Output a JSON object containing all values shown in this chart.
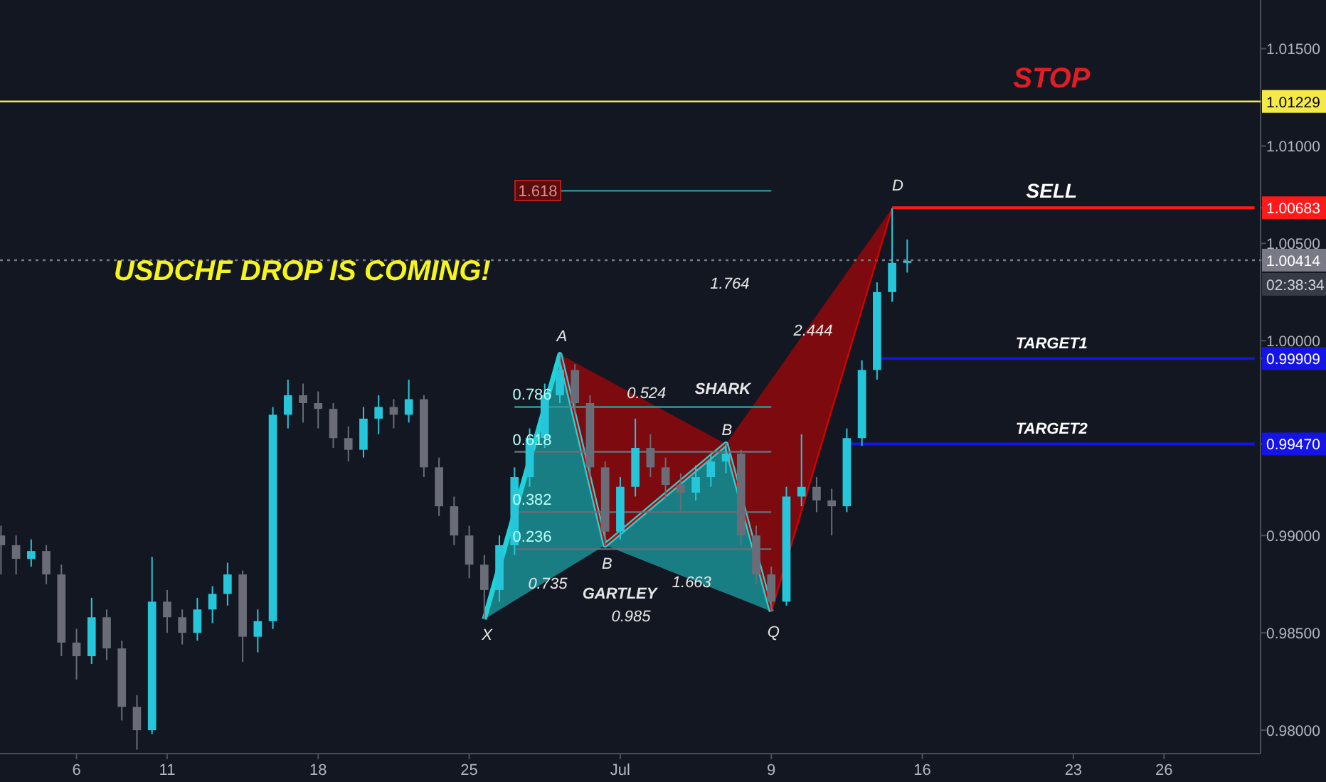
{
  "chart_data": {
    "type": "candlestick",
    "title": "USDCHF DROP IS COMING!",
    "categories": [
      null,
      null,
      null,
      null,
      null,
      "6",
      null,
      null,
      null,
      null,
      null,
      "11",
      null,
      null,
      null,
      null,
      null,
      null,
      null,
      null,
      null,
      "18",
      null,
      null,
      null,
      null,
      null,
      null,
      null,
      null,
      null,
      "25",
      null,
      null,
      null,
      null,
      null,
      null,
      null,
      null,
      null,
      "Jul",
      null,
      null,
      null,
      null,
      null,
      null,
      null,
      null,
      null,
      "9",
      null,
      null,
      null,
      null,
      null,
      null,
      null,
      null,
      null,
      "16",
      null,
      null,
      null,
      null,
      null,
      null,
      null,
      null,
      null,
      "23",
      null,
      null,
      null,
      null,
      null,
      "26",
      null,
      null,
      null,
      null,
      null,
      null
    ],
    "ohlc": [
      [
        0.99,
        0.9905,
        0.988,
        0.9895
      ],
      [
        0.9895,
        0.99,
        0.988,
        0.9888
      ],
      [
        0.9888,
        0.9898,
        0.9884,
        0.9892
      ],
      [
        0.9892,
        0.9895,
        0.9875,
        0.988
      ],
      [
        0.988,
        0.9885,
        0.9838,
        0.9845
      ],
      [
        0.9845,
        0.9852,
        0.9826,
        0.9838
      ],
      [
        0.9838,
        0.9868,
        0.9834,
        0.9858
      ],
      [
        0.9858,
        0.9862,
        0.9836,
        0.9842
      ],
      [
        0.9842,
        0.9846,
        0.9805,
        0.9812
      ],
      [
        0.9812,
        0.9818,
        0.979,
        0.98
      ],
      [
        0.98,
        0.9889,
        0.9798,
        0.9866
      ],
      [
        0.9866,
        0.9872,
        0.985,
        0.9858
      ],
      [
        0.9858,
        0.9862,
        0.9844,
        0.985
      ],
      [
        0.985,
        0.9868,
        0.9846,
        0.9862
      ],
      [
        0.9862,
        0.9874,
        0.9855,
        0.987
      ],
      [
        0.987,
        0.9886,
        0.9864,
        0.988
      ],
      [
        0.988,
        0.9882,
        0.9835,
        0.9848
      ],
      [
        0.9848,
        0.9862,
        0.984,
        0.9856
      ],
      [
        0.9856,
        0.9966,
        0.9852,
        0.9962
      ],
      [
        0.9962,
        0.998,
        0.9955,
        0.9972
      ],
      [
        0.9972,
        0.9978,
        0.9958,
        0.9968
      ],
      [
        0.9968,
        0.9974,
        0.9955,
        0.9965
      ],
      [
        0.9965,
        0.9968,
        0.9945,
        0.995
      ],
      [
        0.995,
        0.9956,
        0.9938,
        0.9944
      ],
      [
        0.9944,
        0.9966,
        0.994,
        0.996
      ],
      [
        0.996,
        0.9972,
        0.9952,
        0.9966
      ],
      [
        0.9966,
        0.997,
        0.9955,
        0.9962
      ],
      [
        0.9962,
        0.998,
        0.9958,
        0.997
      ],
      [
        0.997,
        0.9972,
        0.993,
        0.9935
      ],
      [
        0.9935,
        0.994,
        0.991,
        0.9915
      ],
      [
        0.9915,
        0.992,
        0.9895,
        0.99
      ],
      [
        0.99,
        0.9905,
        0.9878,
        0.9885
      ],
      [
        0.9885,
        0.989,
        0.9857,
        0.9872
      ],
      [
        0.9872,
        0.99,
        0.9866,
        0.9895
      ],
      [
        0.9895,
        0.9935,
        0.989,
        0.993
      ],
      [
        0.993,
        0.9955,
        0.9925,
        0.995
      ],
      [
        0.995,
        0.9978,
        0.9945,
        0.9972
      ],
      [
        0.9972,
        0.9993,
        0.9968,
        0.9985
      ],
      [
        0.9985,
        0.9988,
        0.9962,
        0.9968
      ],
      [
        0.9968,
        0.9972,
        0.993,
        0.9935
      ],
      [
        0.9935,
        0.9938,
        0.9895,
        0.9902
      ],
      [
        0.9902,
        0.993,
        0.9898,
        0.9925
      ],
      [
        0.9925,
        0.996,
        0.992,
        0.9945
      ],
      [
        0.9945,
        0.9952,
        0.993,
        0.9935
      ],
      [
        0.9935,
        0.994,
        0.9918,
        0.9926
      ],
      [
        0.9926,
        0.9932,
        0.9912,
        0.9922
      ],
      [
        0.9922,
        0.9936,
        0.9918,
        0.993
      ],
      [
        0.993,
        0.9942,
        0.9925,
        0.9938
      ],
      [
        0.9938,
        0.9947,
        0.9932,
        0.9942
      ],
      [
        0.9942,
        0.9944,
        0.9895,
        0.99
      ],
      [
        0.99,
        0.9905,
        0.9875,
        0.988
      ],
      [
        0.988,
        0.9884,
        0.9861,
        0.9866
      ],
      [
        0.9866,
        0.9925,
        0.9864,
        0.992
      ],
      [
        0.992,
        0.9952,
        0.9915,
        0.9925
      ],
      [
        0.9925,
        0.993,
        0.9912,
        0.9918
      ],
      [
        0.9918,
        0.9924,
        0.99,
        0.9915
      ],
      [
        0.9915,
        0.9955,
        0.9912,
        0.995
      ],
      [
        0.995,
        0.999,
        0.9946,
        0.9985
      ],
      [
        0.9985,
        1.003,
        0.998,
        1.0025
      ],
      [
        1.0025,
        1.0068,
        1.002,
        1.004
      ],
      [
        1.004,
        1.0052,
        1.0035,
        1.0041
      ],
      null,
      null,
      null,
      null,
      null,
      null,
      null,
      null,
      null,
      null,
      null,
      null,
      null,
      null,
      null,
      null,
      null,
      null,
      null,
      null,
      null,
      null,
      null
    ],
    "ylim": [
      0.9788,
      1.0175
    ],
    "yticks": [
      {
        "value": 0.98,
        "label": "0.98000"
      },
      {
        "value": 0.985,
        "label": "0.98500"
      },
      {
        "value": 0.99,
        "label": "0.99000"
      },
      {
        "value": 0.9947,
        "label": "0.99470"
      },
      {
        "value": 0.99909,
        "label": "0.99909"
      },
      {
        "value": 1.0,
        "label": "1.00000"
      },
      {
        "value": 1.00414,
        "label": "1.00414"
      },
      {
        "value": 1.005,
        "label": "1.00500"
      },
      {
        "value": 1.00683,
        "label": "1.00683"
      },
      {
        "value": 1.01,
        "label": "1.01000"
      },
      {
        "value": 1.01229,
        "label": "1.01229"
      },
      {
        "value": 1.015,
        "label": "1.01500"
      }
    ],
    "series": [
      {
        "type": "line",
        "color": "#1fd3d6",
        "values": [
          null,
          null,
          null,
          null,
          null,
          null,
          null,
          null,
          null,
          null,
          null,
          null,
          null,
          null,
          null,
          null,
          null,
          null,
          null,
          null,
          null,
          null,
          null,
          null,
          null,
          null,
          null,
          null,
          null,
          null,
          null,
          null,
          0.9857,
          null,
          null,
          null,
          null,
          0.9993,
          null,
          null,
          0.9895,
          null,
          null,
          null,
          null,
          null,
          null,
          null,
          0.9947,
          null,
          null,
          0.9861,
          null,
          null,
          null,
          null,
          null,
          null,
          null,
          null,
          null,
          null,
          null,
          null,
          null,
          null,
          null,
          null,
          null,
          null,
          null,
          null,
          null,
          null,
          null,
          null,
          null,
          null,
          null,
          null,
          null,
          null,
          null,
          null
        ]
      },
      {
        "type": "line",
        "color": "#d40000",
        "values": [
          null,
          null,
          null,
          null,
          null,
          null,
          null,
          null,
          null,
          null,
          null,
          null,
          null,
          null,
          null,
          null,
          null,
          null,
          null,
          null,
          null,
          null,
          null,
          null,
          null,
          null,
          null,
          null,
          null,
          null,
          null,
          null,
          null,
          null,
          null,
          null,
          null,
          0.9993,
          null,
          null,
          0.9895,
          null,
          null,
          null,
          null,
          null,
          null,
          null,
          0.9947,
          null,
          null,
          0.9861,
          null,
          null,
          null,
          null,
          null,
          null,
          null,
          1.0068,
          null,
          null,
          null,
          null,
          null,
          null,
          null,
          null,
          null,
          null,
          null,
          null,
          null,
          null,
          null,
          null,
          null,
          null,
          null,
          null,
          null,
          null,
          null,
          null
        ]
      },
      {
        "type": "line",
        "name": "SELL",
        "color": "#ff1a1a",
        "values": [
          null,
          null,
          null,
          null,
          null,
          null,
          null,
          null,
          null,
          null,
          null,
          null,
          null,
          null,
          null,
          null,
          null,
          null,
          null,
          null,
          null,
          null,
          null,
          null,
          null,
          null,
          null,
          null,
          null,
          null,
          null,
          null,
          null,
          null,
          null,
          null,
          null,
          null,
          null,
          null,
          null,
          null,
          null,
          null,
          null,
          null,
          null,
          null,
          null,
          null,
          null,
          null,
          null,
          null,
          null,
          null,
          null,
          null,
          null,
          1.00683,
          1.00683,
          1.00683,
          1.00683,
          1.00683,
          1.00683,
          1.00683,
          1.00683,
          1.00683,
          1.00683,
          1.00683,
          1.00683,
          1.00683,
          1.00683,
          1.00683,
          1.00683,
          1.00683,
          1.00683,
          1.00683,
          1.00683,
          1.00683,
          1.00683,
          1.00683,
          1.00683,
          1.00683
        ]
      },
      {
        "type": "line",
        "name": "TARGET1",
        "color": "#1414e6",
        "values": [
          null,
          null,
          null,
          null,
          null,
          null,
          null,
          null,
          null,
          null,
          null,
          null,
          null,
          null,
          null,
          null,
          null,
          null,
          null,
          null,
          null,
          null,
          null,
          null,
          null,
          null,
          null,
          null,
          null,
          null,
          null,
          null,
          null,
          null,
          null,
          null,
          null,
          null,
          null,
          null,
          null,
          null,
          null,
          null,
          null,
          null,
          null,
          null,
          null,
          null,
          null,
          null,
          null,
          null,
          null,
          null,
          null,
          null,
          0.99909,
          0.99909,
          0.99909,
          0.99909,
          0.99909,
          0.99909,
          0.99909,
          0.99909,
          0.99909,
          0.99909,
          0.99909,
          0.99909,
          0.99909,
          0.99909,
          0.99909,
          0.99909,
          0.99909,
          0.99909,
          0.99909,
          0.99909,
          0.99909,
          0.99909,
          0.99909,
          0.99909,
          0.99909,
          0.99909
        ]
      },
      {
        "type": "line",
        "name": "TARGET2",
        "color": "#1414e6",
        "values": [
          null,
          null,
          null,
          null,
          null,
          null,
          null,
          null,
          null,
          null,
          null,
          null,
          null,
          null,
          null,
          null,
          null,
          null,
          null,
          null,
          null,
          null,
          null,
          null,
          null,
          null,
          null,
          null,
          null,
          null,
          null,
          null,
          null,
          null,
          null,
          null,
          null,
          null,
          null,
          null,
          null,
          null,
          null,
          null,
          null,
          null,
          null,
          null,
          null,
          null,
          null,
          null,
          null,
          null,
          null,
          null,
          0.9947,
          0.9947,
          0.9947,
          0.9947,
          0.9947,
          0.9947,
          0.9947,
          0.9947,
          0.9947,
          0.9947,
          0.9947,
          0.9947,
          0.9947,
          0.9947,
          0.9947,
          0.9947,
          0.9947,
          0.9947,
          0.9947,
          0.9947,
          0.9947,
          0.9947,
          0.9947,
          0.9947,
          0.9947,
          0.9947,
          0.9947,
          0.9947
        ]
      },
      {
        "type": "line",
        "color": "#2a9d9a",
        "values": [
          null,
          null,
          null,
          null,
          null,
          null,
          null,
          null,
          null,
          null,
          null,
          null,
          null,
          null,
          null,
          null,
          null,
          null,
          null,
          null,
          null,
          null,
          null,
          null,
          null,
          null,
          null,
          null,
          null,
          null,
          null,
          null,
          null,
          null,
          null,
          null,
          null,
          1.0077,
          1.0077,
          1.0077,
          1.0077,
          1.0077,
          1.0077,
          1.0077,
          1.0077,
          1.0077,
          1.0077,
          1.0077,
          1.0077,
          1.0077,
          1.0077,
          1.0077,
          null,
          null,
          null,
          null,
          null,
          null,
          null,
          null,
          null,
          null,
          null,
          null,
          null,
          null,
          null,
          null,
          null,
          null,
          null,
          null,
          null,
          null,
          null,
          null,
          null,
          null,
          null,
          null,
          null,
          null,
          null,
          null
        ]
      },
      {
        "type": "line",
        "color": "#2a9d9a",
        "values": [
          null,
          null,
          null,
          null,
          null,
          null,
          null,
          null,
          null,
          null,
          null,
          null,
          null,
          null,
          null,
          null,
          null,
          null,
          null,
          null,
          null,
          null,
          null,
          null,
          null,
          null,
          null,
          null,
          null,
          null,
          null,
          null,
          null,
          null,
          0.9966,
          0.9966,
          0.9966,
          0.9966,
          0.9966,
          0.9966,
          0.9966,
          0.9966,
          0.9966,
          0.9966,
          0.9966,
          0.9966,
          0.9966,
          0.9966,
          0.9966,
          0.9966,
          0.9966,
          0.9966,
          null,
          null,
          null,
          null,
          null,
          null,
          null,
          null,
          null,
          null,
          null,
          null,
          null,
          null,
          null,
          null,
          null,
          null,
          null,
          null,
          null,
          null,
          null,
          null,
          null,
          null,
          null,
          null,
          null,
          null,
          null,
          null
        ]
      },
      {
        "type": "line",
        "color": "#6b6e78",
        "values": [
          null,
          null,
          null,
          null,
          null,
          null,
          null,
          null,
          null,
          null,
          null,
          null,
          null,
          null,
          null,
          null,
          null,
          null,
          null,
          null,
          null,
          null,
          null,
          null,
          null,
          null,
          null,
          null,
          null,
          null,
          null,
          null,
          null,
          null,
          0.9943,
          0.9943,
          0.9943,
          0.9943,
          0.9943,
          0.9943,
          0.9943,
          0.9943,
          0.9943,
          0.9943,
          0.9943,
          0.9943,
          0.9943,
          0.9943,
          0.9943,
          0.9943,
          0.9943,
          0.9943,
          null,
          null,
          null,
          null,
          null,
          null,
          null,
          null,
          null,
          null,
          null,
          null,
          null,
          null,
          null,
          null,
          null,
          null,
          null,
          null,
          null,
          null,
          null,
          null,
          null,
          null,
          null,
          null,
          null,
          null,
          null,
          null
        ]
      },
      {
        "type": "line",
        "color": "#6b6e78",
        "values": [
          null,
          null,
          null,
          null,
          null,
          null,
          null,
          null,
          null,
          null,
          null,
          null,
          null,
          null,
          null,
          null,
          null,
          null,
          null,
          null,
          null,
          null,
          null,
          null,
          null,
          null,
          null,
          null,
          null,
          null,
          null,
          null,
          null,
          null,
          0.9912,
          0.9912,
          0.9912,
          0.9912,
          0.9912,
          0.9912,
          0.9912,
          0.9912,
          0.9912,
          0.9912,
          0.9912,
          0.9912,
          0.9912,
          0.9912,
          0.9912,
          0.9912,
          0.9912,
          0.9912,
          null,
          null,
          null,
          null,
          null,
          null,
          null,
          null,
          null,
          null,
          null,
          null,
          null,
          null,
          null,
          null,
          null,
          null,
          null,
          null,
          null,
          null,
          null,
          null,
          null,
          null,
          null,
          null,
          null,
          null,
          null,
          null
        ]
      },
      {
        "type": "line",
        "color": "#6b6e78",
        "values": [
          null,
          null,
          null,
          null,
          null,
          null,
          null,
          null,
          null,
          null,
          null,
          null,
          null,
          null,
          null,
          null,
          null,
          null,
          null,
          null,
          null,
          null,
          null,
          null,
          null,
          null,
          null,
          null,
          null,
          null,
          null,
          null,
          null,
          null,
          0.9893,
          0.9893,
          0.9893,
          0.9893,
          0.9893,
          0.9893,
          0.9893,
          0.9893,
          0.9893,
          0.9893,
          0.9893,
          0.9893,
          0.9893,
          0.9893,
          0.9893,
          0.9893,
          0.9893,
          0.9893,
          null,
          null,
          null,
          null,
          null,
          null,
          null,
          null,
          null,
          null,
          null,
          null,
          null,
          null,
          null,
          null,
          null,
          null,
          null,
          null,
          null,
          null,
          null,
          null,
          null,
          null,
          null,
          null,
          null,
          null,
          null,
          null
        ]
      }
    ],
    "ref_lines": [
      {
        "axis": "y",
        "value": 1.01229,
        "label": "STOP",
        "color": "#f5e94a",
        "line_style": "solid"
      },
      {
        "axis": "y",
        "value": 1.00414,
        "color": "#787b86",
        "line_style": "dotted"
      }
    ],
    "annotations": [
      "X",
      "A",
      "B",
      "B",
      "Q",
      "D",
      "0.735",
      "0.985",
      "1.663",
      "0.524",
      "1.764",
      "2.444",
      "SHARK",
      "GARTLEY",
      "0.786",
      "0.618",
      "0.382",
      "0.236",
      "1.618",
      "02:38:34"
    ]
  }
}
